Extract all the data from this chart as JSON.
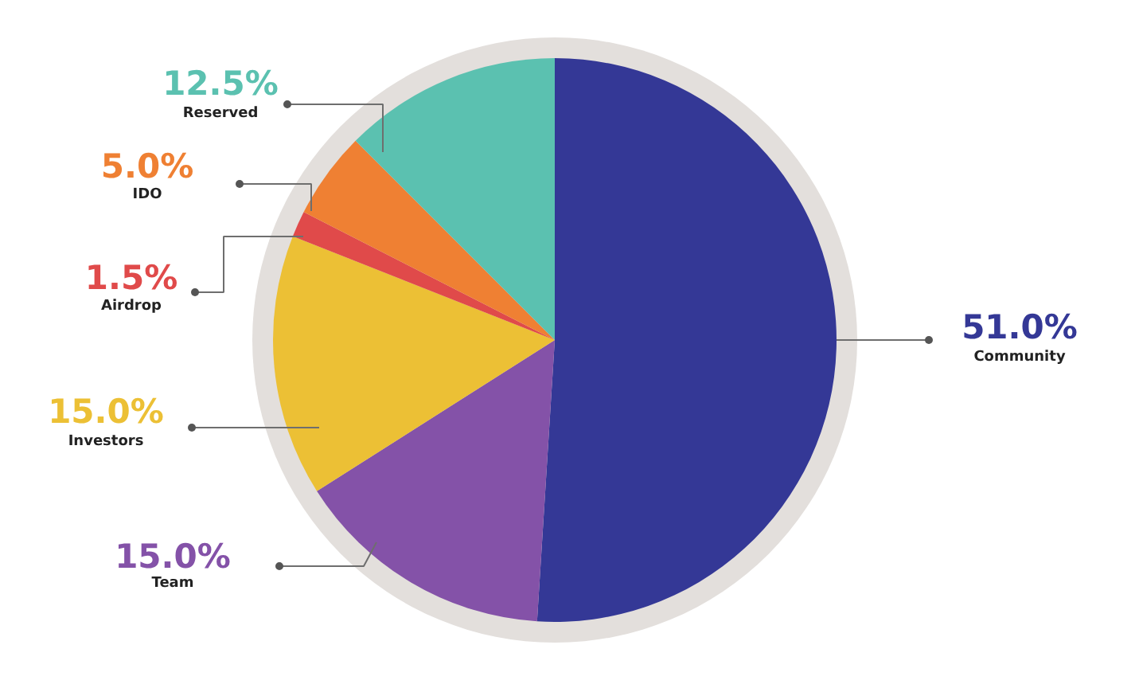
{
  "chart_data": {
    "type": "pie",
    "categories": [
      "Community",
      "Team",
      "Investors",
      "Airdrop",
      "IDO",
      "Reserved"
    ],
    "values": [
      51.0,
      15.0,
      15.0,
      1.5,
      5.0,
      12.5
    ],
    "colors": [
      "#343896",
      "#8452a8",
      "#ecc035",
      "#e04a4a",
      "#ef8033",
      "#5bc1b0"
    ],
    "value_labels": [
      "51.0%",
      "15.0%",
      "15.0%",
      "1.5%",
      "5.0%",
      "12.5%"
    ]
  }
}
